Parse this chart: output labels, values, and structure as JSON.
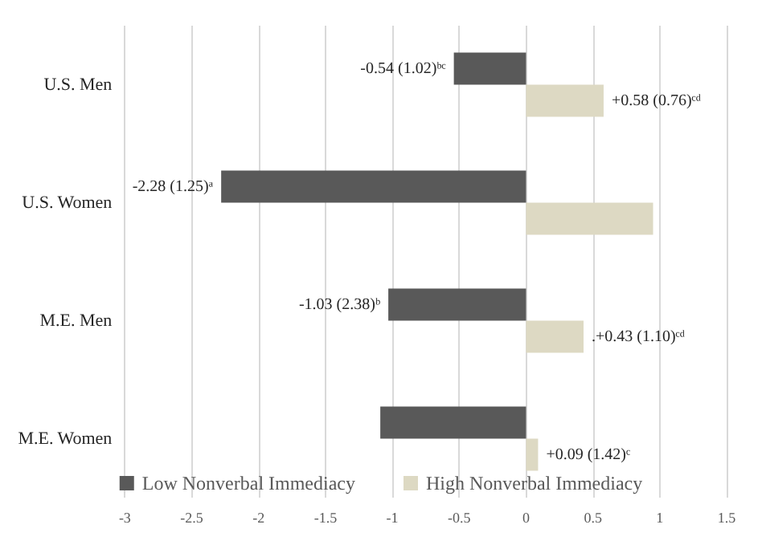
{
  "chart_data": {
    "type": "bar",
    "orientation": "horizontal",
    "categories": [
      "U.S. Men",
      "U.S. Women",
      "M.E. Men",
      "M.E. Women"
    ],
    "series": [
      {
        "name": "Low Nonverbal Immediacy",
        "color": "#595959",
        "values": [
          -0.54,
          -2.28,
          -1.03,
          -1.09
        ],
        "value_labels": [
          "-0.54 (1.02)ᵇᶜ",
          "-2.28 (1.25)ᵃ",
          "-1.03 (2.38)ᵇ",
          null
        ]
      },
      {
        "name": "High Nonverbal Immediacy",
        "color": "#ddd9c3",
        "values": [
          0.58,
          0.95,
          0.43,
          0.09
        ],
        "value_labels": [
          "+0.58 (0.76)ᶜᵈ",
          null,
          ".+0.43 (1.10)ᶜᵈ",
          "+0.09 (1.42)ᶜ"
        ]
      }
    ],
    "xlim": [
      -3,
      1.5
    ],
    "xticks": [
      -3,
      -2.5,
      -2,
      -1.5,
      -1,
      -0.5,
      0,
      0.5,
      1,
      1.5
    ],
    "grid": "x",
    "legend": "bottom"
  }
}
